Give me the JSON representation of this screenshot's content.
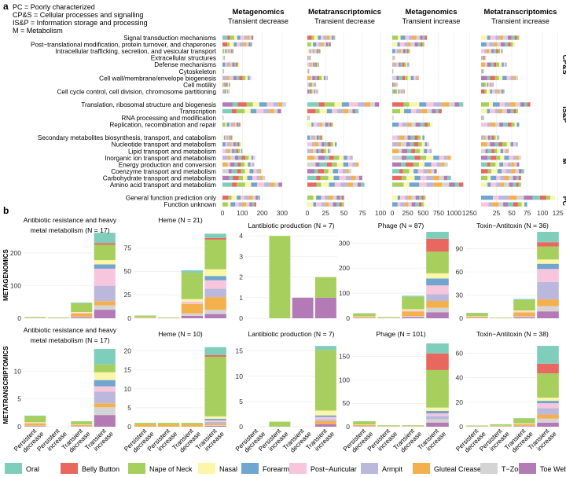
{
  "panel_labels": {
    "a": "a",
    "b": "b"
  },
  "legend_text": [
    "PC = Poorly characterized",
    "CP&S = Cellular processes and signalling",
    "IS&P = Information storage and processing",
    "M = Metabolism"
  ],
  "body_sites": [
    {
      "name": "Oral",
      "color": "#7fcdbb"
    },
    {
      "name": "Belly Button",
      "color": "#e8685f"
    },
    {
      "name": "Nape of Neck",
      "color": "#a6cf5e"
    },
    {
      "name": "Nasal",
      "color": "#fbf6a8"
    },
    {
      "name": "Forearm",
      "color": "#6fa6cf"
    },
    {
      "name": "Post−Auricular",
      "color": "#f7c6dd"
    },
    {
      "name": "Armpit",
      "color": "#bcb7dd"
    },
    {
      "name": "Gluteal Crease",
      "color": "#f5b04e"
    },
    {
      "name": "T−Zone",
      "color": "#d4d4d4"
    },
    {
      "name": "Toe Web Space",
      "color": "#b37ab5"
    }
  ],
  "chart_data": [
    {
      "type": "bar",
      "orientation": "horizontal",
      "stacked": true,
      "panel": "a",
      "categories": [
        "Signal transduction mechanisms",
        "Post−translational modification, protein turnover, and chaperones",
        "Intracellular trafficking, secretion, and vesicular transport",
        "Extracellular structures",
        "Defense mechanisms",
        "Cytoskeleton",
        "Cell wall/membrane/envelope biogenesis",
        "Cell motility",
        "Cell cycle control, cell division, chromosome partitioning",
        "Translation, ribosomal structure and biogenesis",
        "Transcription",
        "RNA processing and modification",
        "Replication, recombination and repair",
        "Secondary metabolites biosynthesis, transport, and catabolism",
        "Nucleotide transport and metabolism",
        "Lipid transport and metabolism",
        "Inorganic ion transport and metabolism",
        "Energy production and conversion",
        "Coenzyme transport and metabolism",
        "Carbohydrate transport and metabolism",
        "Amino acid transport and metabolism",
        "General function prediction only",
        "Function unknown"
      ],
      "groups": [
        {
          "label": "CP&S",
          "start": 0,
          "end": 8
        },
        {
          "label": "IS&P",
          "start": 9,
          "end": 12
        },
        {
          "label": "M",
          "start": 13,
          "end": 20
        },
        {
          "label": "PC",
          "start": 21,
          "end": 22
        }
      ],
      "facets": [
        {
          "title": "Metagenomics",
          "subtitle": "Transient decrease",
          "xlim": [
            0,
            360
          ],
          "ticks": [
            0,
            100,
            200,
            300
          ],
          "totals": [
            155,
            150,
            55,
            12,
            85,
            8,
            145,
            40,
            35,
            320,
            295,
            6,
            90,
            50,
            95,
            100,
            165,
            160,
            195,
            215,
            300,
            190,
            170
          ]
        },
        {
          "title": "Metatranscriptomics",
          "subtitle": "Transient decrease",
          "xlim": [
            0,
            102
          ],
          "ticks": [
            0,
            25,
            50,
            75,
            100
          ],
          "totals": [
            38,
            32,
            18,
            5,
            16,
            3,
            28,
            12,
            15,
            98,
            70,
            3,
            35,
            22,
            40,
            32,
            62,
            70,
            60,
            75,
            78,
            50,
            50
          ]
        },
        {
          "title": "Metagenomics",
          "subtitle": "Transient increase",
          "xlim": [
            0,
            1260
          ],
          "ticks": [
            0,
            250,
            500,
            750,
            1000,
            1250
          ],
          "totals": [
            560,
            520,
            300,
            40,
            280,
            20,
            430,
            90,
            200,
            1150,
            800,
            20,
            650,
            520,
            600,
            640,
            950,
            900,
            720,
            950,
            1150,
            540,
            540
          ]
        },
        {
          "title": "Metatranscriptomics",
          "subtitle": "Transient increase",
          "xlim": [
            0,
            128
          ],
          "ticks": [
            25,
            50,
            75,
            100,
            125
          ],
          "totals": [
            62,
            55,
            35,
            8,
            42,
            5,
            60,
            20,
            38,
            80,
            60,
            5,
            62,
            30,
            60,
            45,
            65,
            62,
            70,
            65,
            65,
            120,
            75
          ]
        }
      ]
    },
    {
      "type": "bar",
      "stacked": true,
      "panel": "b",
      "categories": [
        "Persistent decrease",
        "Persistent increase",
        "Transient decrease",
        "Transient increase"
      ],
      "rows": [
        {
          "label": "METAGENOMICS",
          "facets": [
            {
              "title": "Antibiotic resistance and heavy metal metabolism (N = 17)",
              "ylim": [
                0,
                265
              ],
              "ticks": [
                0,
                100,
                200
              ],
              "totals": [
                4,
                3,
                48,
                262
              ]
            },
            {
              "title": "Heme (N = 21)",
              "ylim": [
                0,
                92
              ],
              "ticks": [
                0,
                25,
                50,
                75
              ],
              "totals": [
                3,
                1,
                51,
                90
              ]
            },
            {
              "title": "Lantibiotic production (N = 7)",
              "ylim": [
                0,
                4.2
              ],
              "ticks": [
                0,
                1,
                2,
                3,
                4
              ],
              "totals": [
                0,
                4,
                1,
                2
              ]
            },
            {
              "title": "Phage (N = 87)",
              "ylim": [
                0,
                345
              ],
              "ticks": [
                0,
                100,
                200,
                300
              ],
              "totals": [
                20,
                5,
                90,
                345
              ]
            },
            {
              "title": "Toxin−Antitoxin (N = 36)",
              "ylim": [
                0,
                112
              ],
              "ticks": [
                0,
                30,
                60,
                90
              ],
              "totals": [
                7,
                1,
                25,
                112
              ]
            }
          ]
        },
        {
          "label": "METATRANSCRIPTOMICS",
          "facets": [
            {
              "title": "Antibiotic resistance and heavy metal metabolism (N = 17)",
              "ylim": [
                0,
                15
              ],
              "ticks": [
                0,
                5,
                10
              ],
              "totals": [
                2,
                0,
                1,
                14
              ]
            },
            {
              "title": "Heme (N = 10)",
              "ylim": [
                0,
                22
              ],
              "ticks": [
                0,
                5,
                10,
                15,
                20
              ],
              "totals": [
                1,
                1,
                1,
                21
              ]
            },
            {
              "title": "Lantibiotic production (N = 7)",
              "ylim": [
                0,
                16.5
              ],
              "ticks": [
                0,
                5,
                10,
                15
              ],
              "totals": [
                0,
                1,
                0,
                16
              ]
            },
            {
              "title": "Phage (N = 101)",
              "ylim": [
                0,
                178
              ],
              "ticks": [
                0,
                50,
                100,
                150
              ],
              "totals": [
                12,
                3,
                3,
                178
              ]
            },
            {
              "title": "Toxin−Antitoxin (N = 38)",
              "ylim": [
                0,
                68
              ],
              "ticks": [
                0,
                20,
                40,
                60
              ],
              "totals": [
                1,
                2,
                7,
                66
              ]
            }
          ]
        }
      ]
    }
  ]
}
